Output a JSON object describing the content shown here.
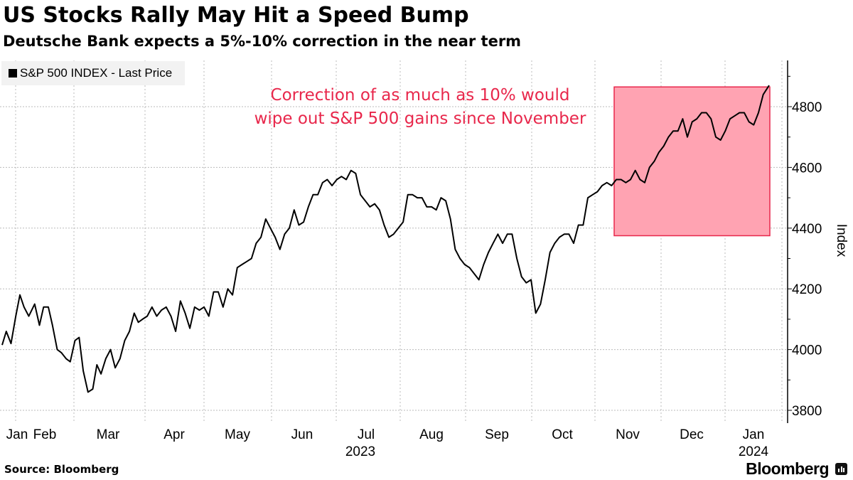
{
  "header": {
    "title": "US Stocks Rally May Hit a Speed Bump",
    "subtitle": "Deutsche Bank expects a 5%-10% correction in the near term"
  },
  "legend": {
    "label": "S&P 500 INDEX - Last Price",
    "swatch_color": "#000000"
  },
  "footer": {
    "source": "Source: Bloomberg",
    "brand": "Bloomberg",
    "brand_icon": "bloomberg-chart-icon"
  },
  "colors": {
    "line": "#000000",
    "highlight_fill": "#ffa3b2",
    "highlight_stroke": "#e8274b",
    "annotation": "#e8274b",
    "grid": "#bbbbbb"
  },
  "chart_data": {
    "type": "line",
    "title": "US Stocks Rally May Hit a Speed Bump",
    "subtitle": "Deutsche Bank expects a 5%-10% correction in the near term",
    "xlabel": "",
    "ylabel": "Index",
    "ylim": [
      3800,
      4900
    ],
    "yticks": [
      3800,
      4000,
      4200,
      4400,
      4600,
      4800
    ],
    "grid": true,
    "legend_position": "top-left",
    "x_month_labels": [
      {
        "label": "Jan",
        "month": 1
      },
      {
        "label": "Feb",
        "month": 2
      },
      {
        "label": "Mar",
        "month": 3
      },
      {
        "label": "Apr",
        "month": 4
      },
      {
        "label": "May",
        "month": 5
      },
      {
        "label": "Jun",
        "month": 6
      },
      {
        "label": "Jul",
        "month": 7
      },
      {
        "label": "Aug",
        "month": 8
      },
      {
        "label": "Sep",
        "month": 9
      },
      {
        "label": "Oct",
        "month": 10
      },
      {
        "label": "Nov",
        "month": 11
      },
      {
        "label": "Dec",
        "month": 12
      },
      {
        "label": "Jan",
        "month": 13
      }
    ],
    "x_year_labels": [
      {
        "label": "2023",
        "month": 6.5
      },
      {
        "label": "2024",
        "month": 12.75
      }
    ],
    "annotation": {
      "lines": [
        "Correction of as much as 10% would",
        "wipe out S&P 500 gains since November"
      ],
      "highlight": {
        "x_start": 10.95,
        "x_end": 13.75,
        "y_low": 4375,
        "y_high": 4865
      }
    },
    "series": [
      {
        "name": "S&P 500 INDEX - Last Price",
        "x": [
          0.75,
          0.82,
          0.9,
          0.98,
          1.05,
          1.12,
          1.2,
          1.3,
          1.38,
          1.45,
          1.53,
          1.6,
          1.68,
          1.75,
          1.83,
          1.9,
          1.98,
          2.05,
          2.12,
          2.2,
          2.28,
          2.35,
          2.42,
          2.5,
          2.58,
          2.66,
          2.74,
          2.82,
          2.9,
          2.98,
          3.05,
          3.12,
          3.2,
          3.28,
          3.36,
          3.44,
          3.52,
          3.6,
          3.68,
          3.76,
          3.84,
          3.92,
          4.0,
          4.08,
          4.16,
          4.24,
          4.32,
          4.4,
          4.48,
          4.56,
          4.64,
          4.72,
          4.8,
          4.88,
          4.96,
          5.04,
          5.12,
          5.2,
          5.28,
          5.36,
          5.44,
          5.52,
          5.6,
          5.68,
          5.76,
          5.84,
          5.92,
          6.0,
          6.08,
          6.16,
          6.24,
          6.32,
          6.4,
          6.48,
          6.56,
          6.64,
          6.72,
          6.8,
          6.88,
          6.96,
          7.04,
          7.12,
          7.2,
          7.28,
          7.36,
          7.44,
          7.52,
          7.6,
          7.68,
          7.76,
          7.84,
          7.92,
          8.0,
          8.08,
          8.16,
          8.24,
          8.32,
          8.4,
          8.48,
          8.56,
          8.64,
          8.72,
          8.8,
          8.88,
          8.96,
          9.04,
          9.12,
          9.2,
          9.28,
          9.36,
          9.44,
          9.52,
          9.6,
          9.68,
          9.76,
          9.84,
          9.92,
          10.0,
          10.08,
          10.16,
          10.24,
          10.32,
          10.4,
          10.48,
          10.56,
          10.64,
          10.72,
          10.8,
          10.88,
          10.96,
          11.04,
          11.12,
          11.2,
          11.28,
          11.36,
          11.44,
          11.52,
          11.6,
          11.68,
          11.76,
          11.84,
          11.92,
          12.0,
          12.08,
          12.16,
          12.24,
          12.32,
          12.4,
          12.48,
          12.56,
          12.64,
          12.72,
          12.8,
          12.88,
          12.96,
          13.04,
          13.12,
          13.2,
          13.28,
          13.36,
          13.44,
          13.52,
          13.6,
          13.7
        ],
        "y": [
          4015,
          4060,
          4020,
          4110,
          4180,
          4140,
          4110,
          4150,
          4080,
          4140,
          4140,
          4080,
          4000,
          3990,
          3970,
          3960,
          4030,
          4040,
          3930,
          3860,
          3870,
          3950,
          3920,
          3970,
          4000,
          3940,
          3970,
          4030,
          4060,
          4120,
          4090,
          4100,
          4110,
          4140,
          4110,
          4130,
          4140,
          4110,
          4060,
          4160,
          4120,
          4070,
          4140,
          4130,
          4140,
          4110,
          4190,
          4190,
          4140,
          4200,
          4180,
          4270,
          4280,
          4290,
          4300,
          4350,
          4370,
          4430,
          4400,
          4370,
          4330,
          4380,
          4400,
          4460,
          4410,
          4420,
          4470,
          4510,
          4510,
          4550,
          4560,
          4540,
          4560,
          4570,
          4560,
          4590,
          4580,
          4510,
          4490,
          4470,
          4480,
          4460,
          4410,
          4370,
          4380,
          4400,
          4420,
          4510,
          4510,
          4500,
          4500,
          4470,
          4470,
          4460,
          4500,
          4490,
          4430,
          4330,
          4300,
          4280,
          4270,
          4250,
          4230,
          4280,
          4320,
          4350,
          4380,
          4350,
          4380,
          4380,
          4300,
          4240,
          4220,
          4230,
          4120,
          4150,
          4230,
          4320,
          4350,
          4370,
          4380,
          4380,
          4350,
          4410,
          4410,
          4500,
          4510,
          4520,
          4540,
          4550,
          4540,
          4560,
          4560,
          4550,
          4560,
          4590,
          4560,
          4550,
          4600,
          4620,
          4650,
          4670,
          4700,
          4720,
          4720,
          4760,
          4700,
          4750,
          4760,
          4780,
          4780,
          4760,
          4700,
          4690,
          4720,
          4760,
          4770,
          4780,
          4780,
          4750,
          4740,
          4780,
          4840,
          4870
        ]
      }
    ]
  }
}
